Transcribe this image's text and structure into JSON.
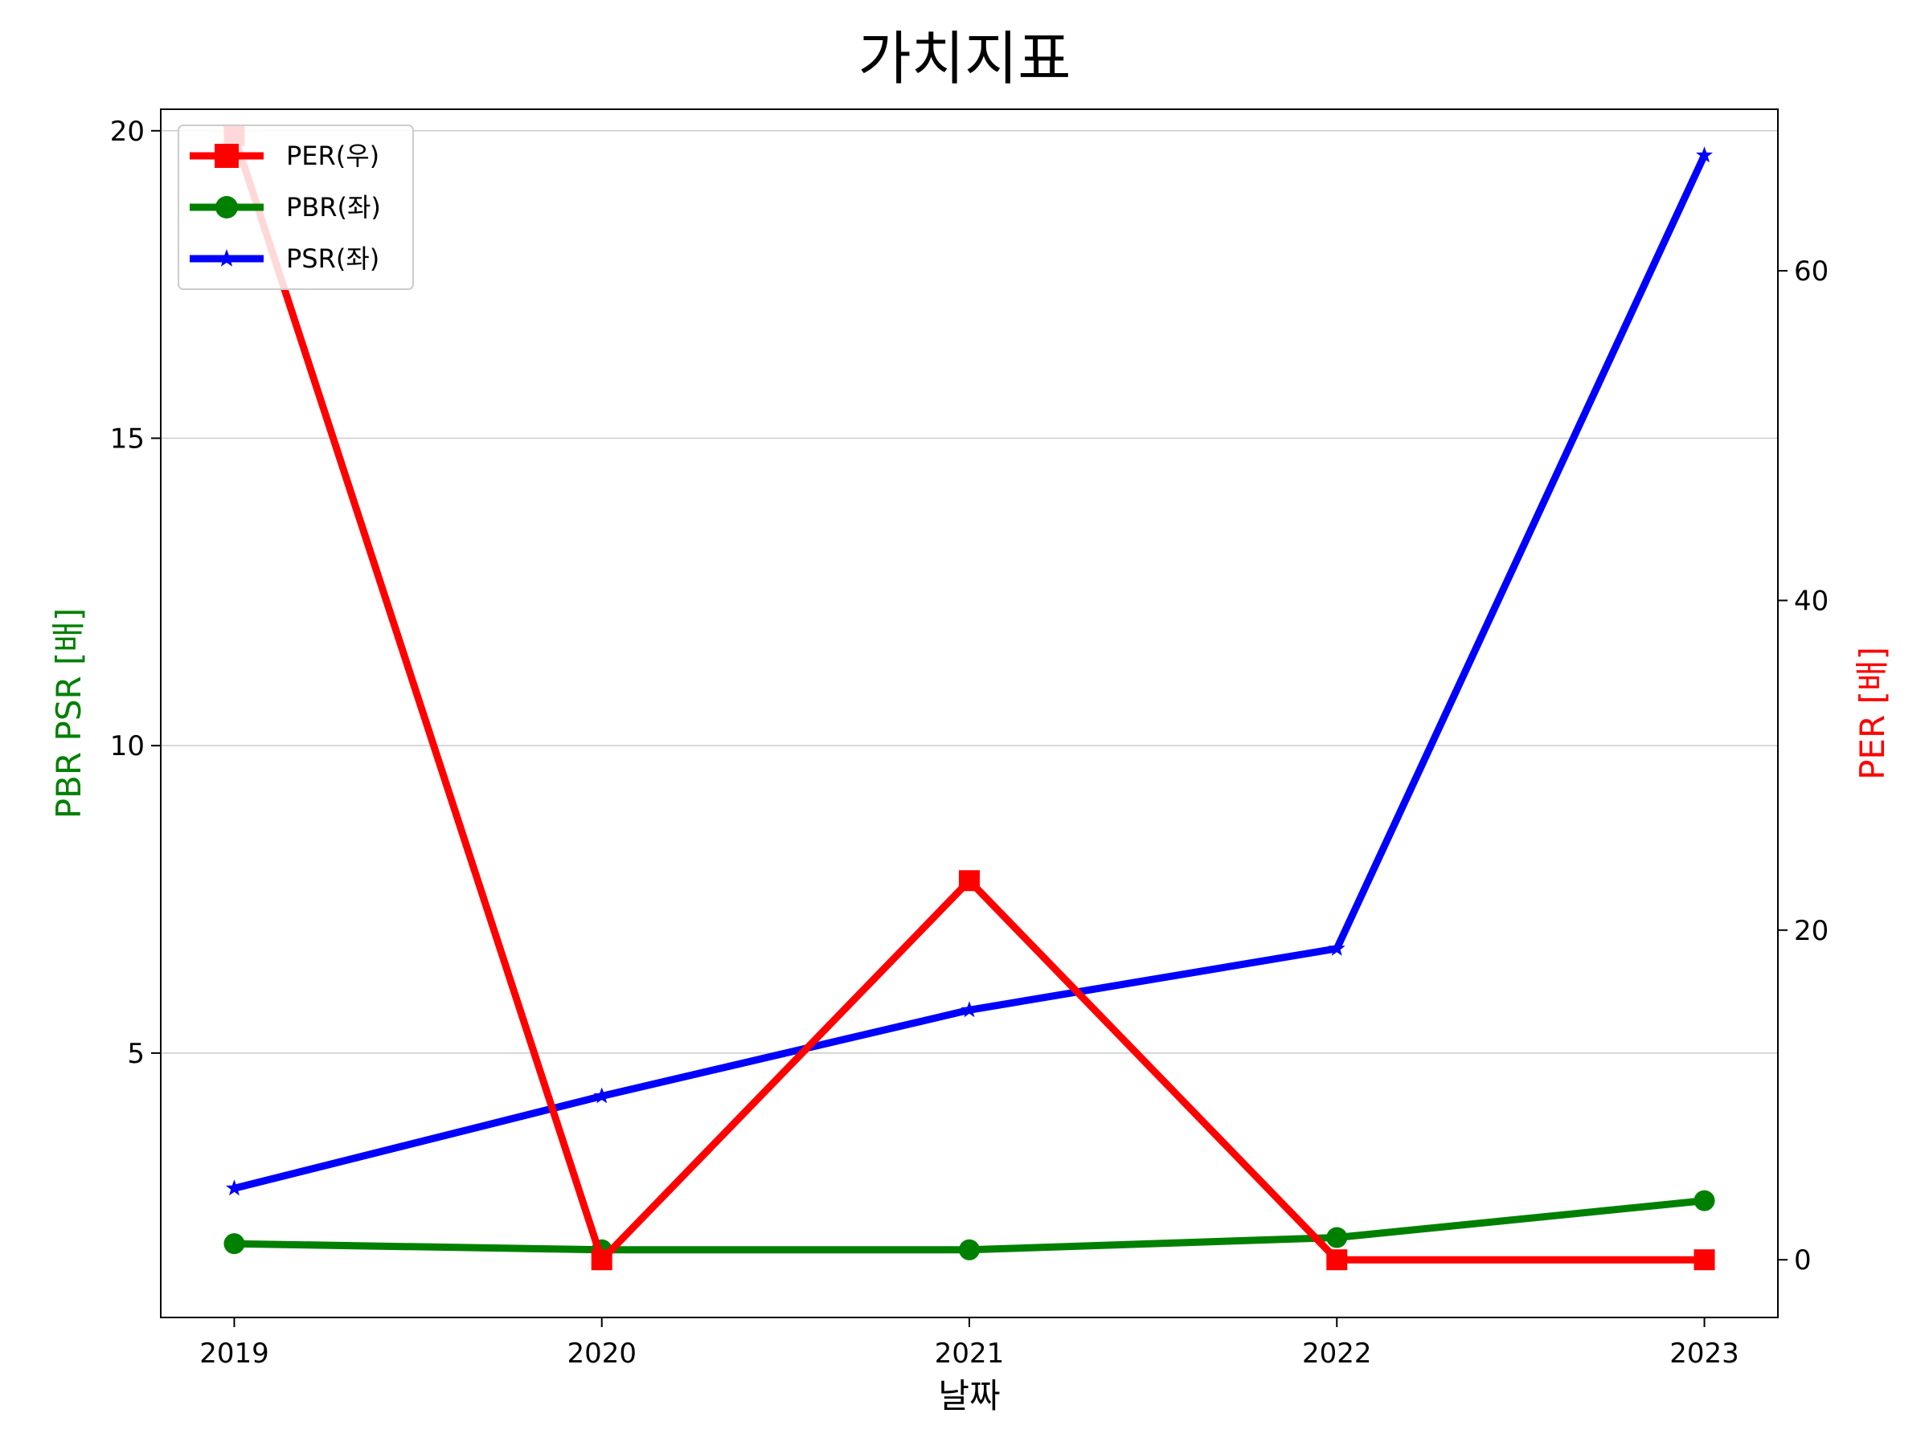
{
  "chart_data": {
    "type": "line",
    "title": "가치지표",
    "xlabel": "날짜",
    "ylabel_left": "PBR PSR [배]",
    "ylabel_right": "PER [배]",
    "x": [
      "2019",
      "2020",
      "2021",
      "2022",
      "2023"
    ],
    "ylim_left": [
      0.7,
      20.35
    ],
    "ylim_right": [
      -3.5,
      69.8
    ],
    "yticks_left": [
      5,
      10,
      15,
      20
    ],
    "yticks_right": [
      0,
      20,
      40,
      60
    ],
    "grid": "horizontal (left axis)",
    "legend_position": "upper-left",
    "series": [
      {
        "name": "PER(우)",
        "axis": "right",
        "color": "#ff0000",
        "marker": "square",
        "values": [
          68.2,
          0.0,
          23.0,
          0.0,
          0.0
        ]
      },
      {
        "name": "PBR(좌)",
        "axis": "left",
        "color": "#008000",
        "marker": "circle",
        "values": [
          1.9,
          1.8,
          1.8,
          2.0,
          2.6
        ]
      },
      {
        "name": "PSR(좌)",
        "axis": "left",
        "color": "#0000ff",
        "marker": "star",
        "values": [
          2.8,
          4.3,
          5.7,
          6.7,
          19.6
        ]
      }
    ]
  }
}
